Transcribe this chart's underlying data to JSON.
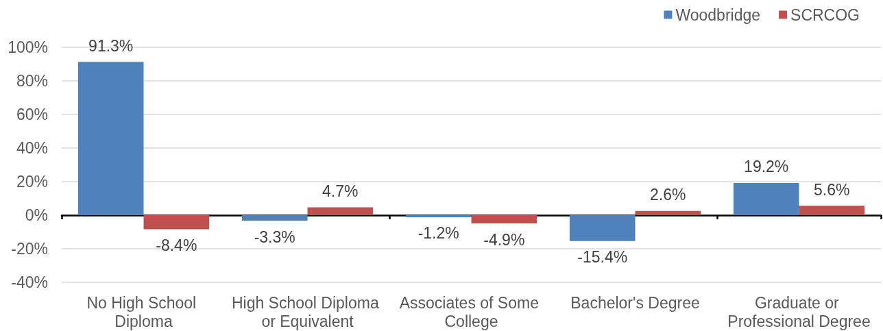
{
  "chart_data": {
    "type": "bar",
    "categories": [
      "No High School Diploma",
      "High School Diploma or Equivalent",
      "Associates of Some College",
      "Bachelor's Degree",
      "Graduate or Professional Degree"
    ],
    "series": [
      {
        "name": "Woodbridge",
        "color": "#4f81bd",
        "values": [
          91.3,
          -3.3,
          -1.2,
          -15.4,
          19.2
        ],
        "value_labels": [
          "91.3%",
          "-3.3%",
          "-1.2%",
          "-15.4%",
          "19.2%"
        ]
      },
      {
        "name": "SCRCOG",
        "color": "#c0504d",
        "values": [
          -8.4,
          4.7,
          -4.9,
          2.6,
          5.6
        ],
        "value_labels": [
          "-8.4%",
          "4.7%",
          "-4.9%",
          "2.6%",
          "5.6%"
        ]
      }
    ],
    "ylim": [
      -40,
      100
    ],
    "yticks": [
      {
        "value": -40,
        "label": "-40%"
      },
      {
        "value": -20,
        "label": "-20%"
      },
      {
        "value": 0,
        "label": "0%"
      },
      {
        "value": 20,
        "label": "20%"
      },
      {
        "value": 40,
        "label": "40%"
      },
      {
        "value": 60,
        "label": "60%"
      },
      {
        "value": 80,
        "label": "80%"
      },
      {
        "value": 100,
        "label": "100%"
      }
    ],
    "grid": "y",
    "legend": "top right"
  }
}
